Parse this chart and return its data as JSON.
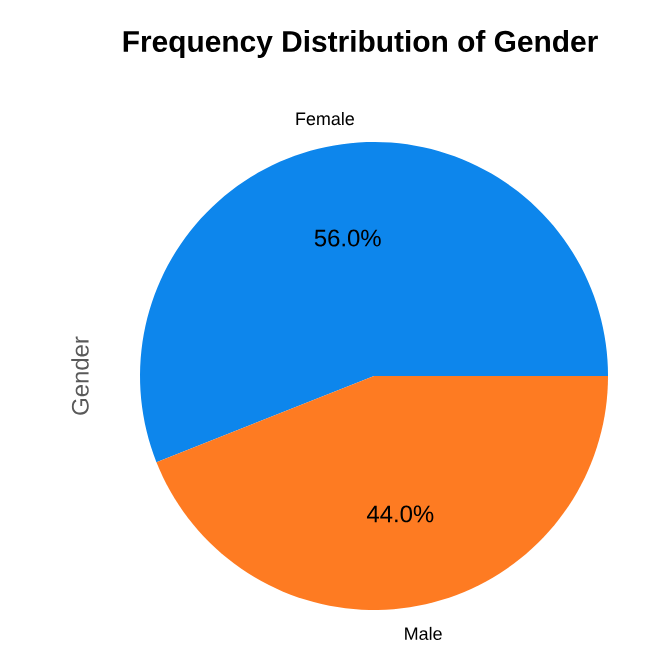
{
  "chart_data": {
    "type": "pie",
    "title": "Frequency Distribution of Gender",
    "ylabel": "Gender",
    "categories": [
      "Female",
      "Male"
    ],
    "values": [
      56.0,
      44.0
    ],
    "colors": [
      "#0d86ec",
      "#fe7b22"
    ],
    "value_labels": [
      "56.0%",
      "44.0%"
    ]
  }
}
